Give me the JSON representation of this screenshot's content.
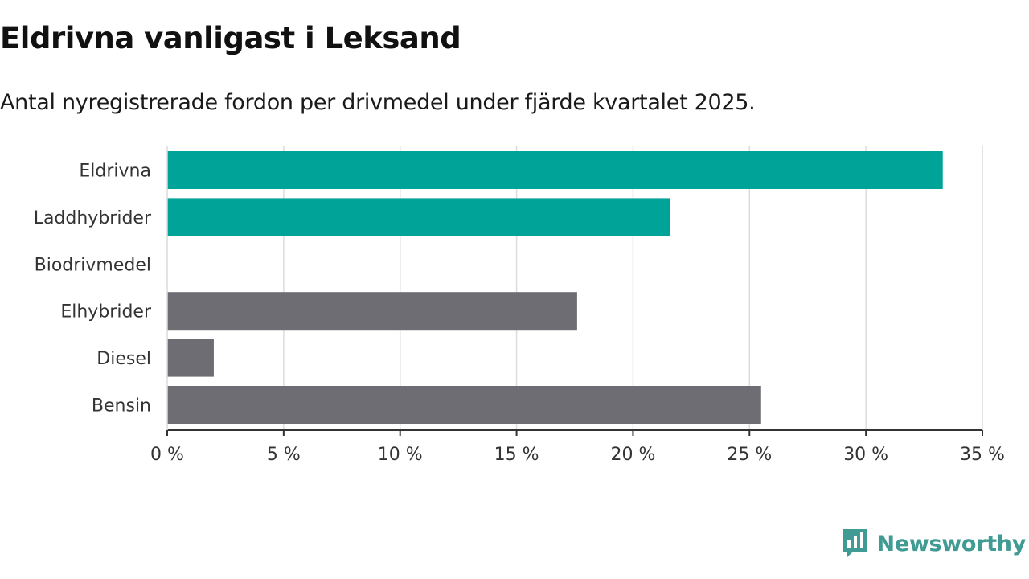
{
  "chart_data": {
    "type": "bar",
    "orientation": "horizontal",
    "title": "Eldrivna vanligast i Leksand",
    "subtitle": "Antal nyregistrerade fordon per drivmedel under fjärde kvartalet 2025.",
    "categories": [
      "Eldrivna",
      "Laddhybrider",
      "Biodrivmedel",
      "Elhybrider",
      "Diesel",
      "Bensin"
    ],
    "values": [
      33.3,
      21.6,
      0,
      17.6,
      2.0,
      25.5
    ],
    "bar_colors": [
      "#00a398",
      "#00a398",
      "#6d6d73",
      "#6d6d73",
      "#6d6d73",
      "#6d6d73"
    ],
    "xlim": [
      0,
      35
    ],
    "x_ticks": [
      0,
      5,
      10,
      15,
      20,
      25,
      30,
      35
    ],
    "x_tick_labels": [
      "0 %",
      "5 %",
      "10 %",
      "15 %",
      "20 %",
      "25 %",
      "30 %",
      "35 %"
    ],
    "xlabel": "",
    "ylabel": "",
    "grid": true
  },
  "brand": {
    "name": "Newsworthy",
    "color": "#3f9b93",
    "logo_icon": "bar-chart-speech-bubble-icon"
  }
}
